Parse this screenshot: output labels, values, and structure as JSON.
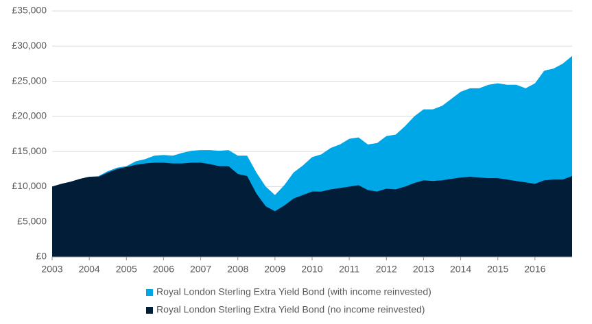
{
  "chart_data": {
    "type": "area",
    "x": [
      2003,
      2003.25,
      2003.5,
      2003.75,
      2004,
      2004.25,
      2004.5,
      2004.75,
      2005,
      2005.25,
      2005.5,
      2005.75,
      2006,
      2006.25,
      2006.5,
      2006.75,
      2007,
      2007.25,
      2007.5,
      2007.75,
      2008,
      2008.25,
      2008.5,
      2008.75,
      2009,
      2009.25,
      2009.5,
      2009.75,
      2010,
      2010.25,
      2010.5,
      2010.75,
      2011,
      2011.25,
      2011.5,
      2011.75,
      2012,
      2012.25,
      2012.5,
      2012.75,
      2013,
      2013.25,
      2013.5,
      2013.75,
      2014,
      2014.25,
      2014.5,
      2014.75,
      2015,
      2015.25,
      2015.5,
      2015.75,
      2016,
      2016.25,
      2016.5,
      2016.75,
      2017
    ],
    "series": [
      {
        "name": "Royal London Sterling Extra Yield Bond (with income reinvested)",
        "color": "#00a7e7",
        "values": [
          10000,
          10400,
          10700,
          11100,
          11400,
          11500,
          12200,
          12700,
          12900,
          13600,
          13900,
          14400,
          14500,
          14400,
          14800,
          15100,
          15200,
          15200,
          15100,
          15200,
          14400,
          14400,
          12000,
          10000,
          8800,
          10200,
          12000,
          13000,
          14200,
          14600,
          15500,
          16000,
          16800,
          17000,
          16000,
          16200,
          17200,
          17400,
          18600,
          20000,
          21000,
          21000,
          21500,
          22500,
          23500,
          24000,
          24000,
          24500,
          24700,
          24500,
          24500,
          24000,
          24700,
          26500,
          26800,
          27500,
          28600
        ]
      },
      {
        "name": "Royal London Sterling Extra Yield Bond (no income reinvested)",
        "color": "#021d37",
        "values": [
          10000,
          10400,
          10700,
          11100,
          11400,
          11400,
          12000,
          12500,
          12800,
          13100,
          13300,
          13400,
          13400,
          13300,
          13300,
          13400,
          13400,
          13200,
          12900,
          12900,
          11800,
          11500,
          9000,
          7200,
          6500,
          7300,
          8300,
          8800,
          9300,
          9300,
          9600,
          9800,
          10000,
          10200,
          9500,
          9300,
          9700,
          9600,
          10000,
          10500,
          10900,
          10800,
          10900,
          11100,
          11300,
          11400,
          11300,
          11200,
          11200,
          11000,
          10800,
          10600,
          10400,
          10900,
          11000,
          11000,
          11500
        ]
      }
    ],
    "xlim": [
      2003,
      2017
    ],
    "xticks": [
      2003,
      2004,
      2005,
      2006,
      2007,
      2008,
      2009,
      2010,
      2011,
      2012,
      2013,
      2014,
      2015,
      2016
    ],
    "ylim": [
      0,
      35000
    ],
    "yticks": [
      {
        "value": 0,
        "label": "£0"
      },
      {
        "value": 5000,
        "label": "£5,000"
      },
      {
        "value": 10000,
        "label": "£10,000"
      },
      {
        "value": 15000,
        "label": "£15,000"
      },
      {
        "value": 20000,
        "label": "£20,000"
      },
      {
        "value": 25000,
        "label": "£25,000"
      },
      {
        "value": 30000,
        "label": "£30,000"
      },
      {
        "value": 35000,
        "label": "£35,000"
      }
    ],
    "grid": true
  }
}
